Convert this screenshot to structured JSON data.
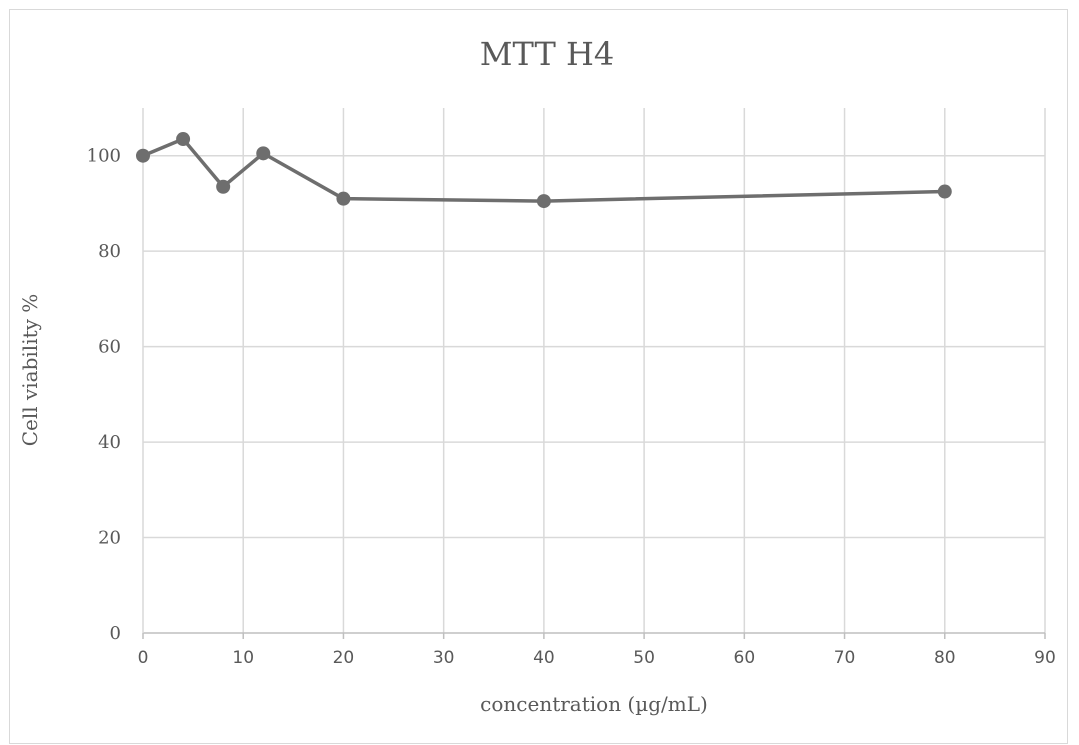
{
  "chart_data": {
    "type": "scatter",
    "title": "MTT H4",
    "xlabel": "concentration (µg/mL)",
    "ylabel": "Cell viability %",
    "xlim": [
      0,
      90
    ],
    "ylim": [
      0,
      110
    ],
    "xticks": [
      0,
      10,
      20,
      30,
      40,
      50,
      60,
      70,
      80,
      90
    ],
    "yticks": [
      0,
      20,
      40,
      60,
      80,
      100
    ],
    "grid": true,
    "legend": "none",
    "series": [
      {
        "x": [
          0,
          4,
          8,
          12,
          20,
          40,
          80
        ],
        "y": [
          100,
          103.5,
          93.5,
          100.5,
          91,
          90.5,
          92.5
        ],
        "color": "#6e6e6e",
        "marker": "circle",
        "line": true
      }
    ]
  }
}
